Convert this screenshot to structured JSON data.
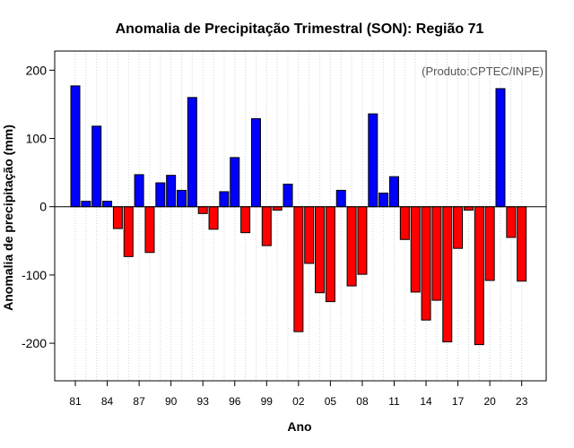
{
  "chart_data": {
    "type": "bar",
    "title": "Anomalia de Precipitação Trimestral (SON): Região 71",
    "xlabel": "Ano",
    "ylabel": "Anomalia de precipitação (mm)",
    "annotation": "(Produto:CPTEC/INPE)",
    "ylim": [
      -255,
      228
    ],
    "y_ticks": [
      -200,
      -100,
      0,
      100,
      200
    ],
    "grid": "vertical dotted",
    "positive_color": "#0000ff",
    "negative_color": "#ff0000",
    "categories": [
      "81",
      "82",
      "83",
      "84",
      "85",
      "86",
      "87",
      "88",
      "89",
      "90",
      "91",
      "92",
      "93",
      "94",
      "95",
      "96",
      "97",
      "98",
      "99",
      "00",
      "01",
      "02",
      "03",
      "04",
      "05",
      "06",
      "07",
      "08",
      "09",
      "10",
      "11",
      "12",
      "13",
      "14",
      "15",
      "16",
      "17",
      "18",
      "19",
      "20",
      "21",
      "22",
      "23"
    ],
    "x_tick_labels": [
      "81",
      "84",
      "87",
      "90",
      "93",
      "96",
      "99",
      "02",
      "05",
      "08",
      "11",
      "14",
      "17",
      "20",
      "23"
    ],
    "values": [
      177,
      8,
      118,
      8,
      -32,
      -73,
      47,
      -67,
      35,
      46,
      24,
      160,
      -10,
      -33,
      22,
      72,
      -38,
      129,
      -57,
      -5,
      33,
      -183,
      -83,
      -126,
      -139,
      24,
      -116,
      -99,
      136,
      20,
      44,
      -48,
      -125,
      -166,
      -137,
      -198,
      -61,
      -5,
      -202,
      -108,
      173,
      -45,
      -109
    ]
  }
}
